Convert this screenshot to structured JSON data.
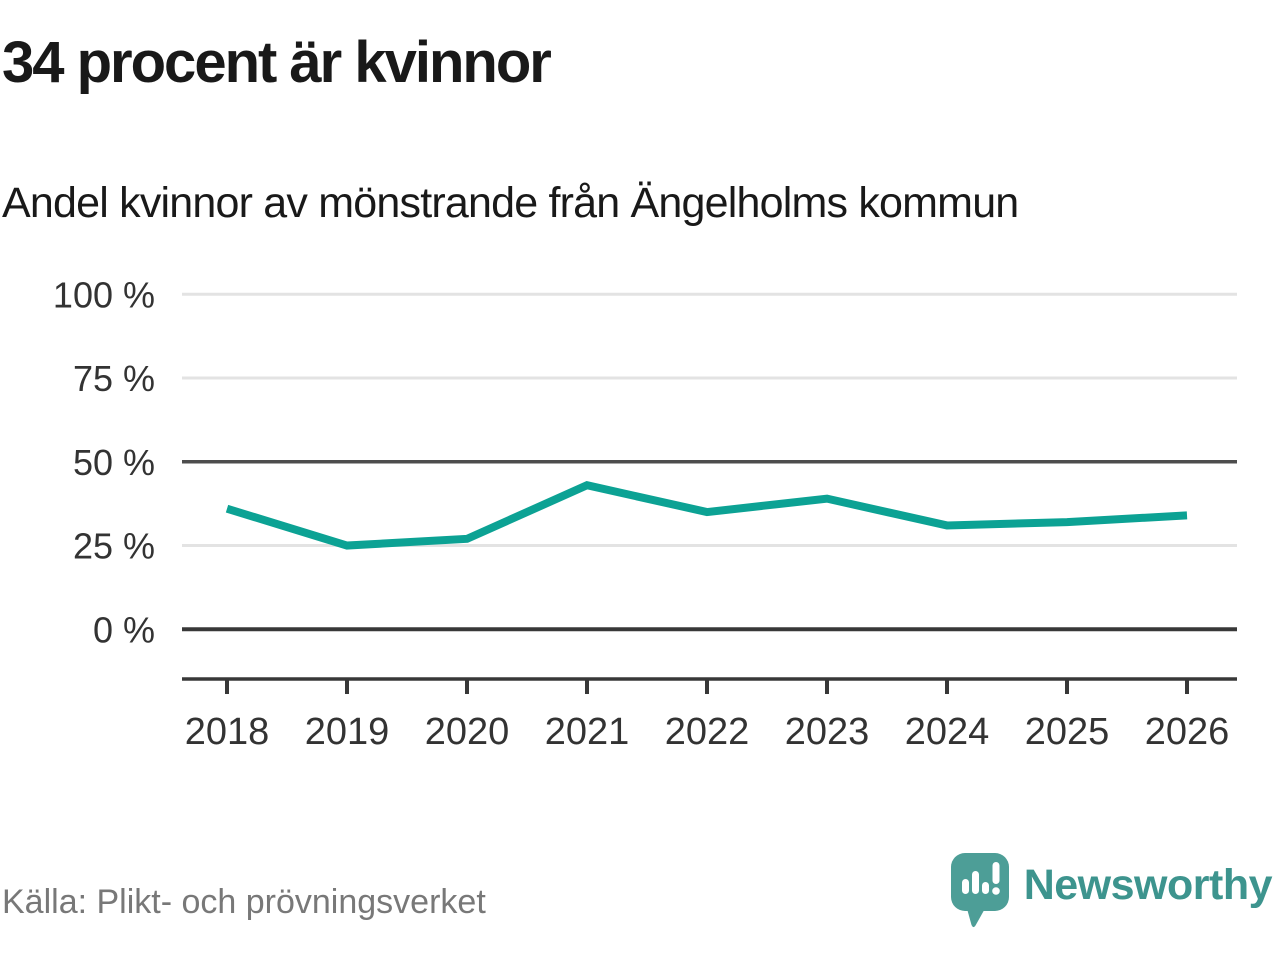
{
  "header": {
    "title": "34 procent är kvinnor",
    "subtitle": "Andel kvinnor av mönstrande från Ängelholms kommun"
  },
  "chart_data": {
    "type": "line",
    "title": "34 procent är kvinnor",
    "subtitle": "Andel kvinnor av mönstrande från Ängelholms kommun",
    "xlabel": "",
    "ylabel": "",
    "unit": "%",
    "x": [
      2018,
      2019,
      2020,
      2021,
      2022,
      2023,
      2024,
      2025,
      2026
    ],
    "xticks": [
      "2018",
      "2019",
      "2020",
      "2021",
      "2022",
      "2023",
      "2024",
      "2025",
      "2026"
    ],
    "series": [
      {
        "name": "Andel kvinnor av mönstrande",
        "color": "#0ca294",
        "values": [
          36,
          25,
          27,
          43,
          35,
          39,
          31,
          32,
          34
        ]
      }
    ],
    "ylim": [
      0,
      100
    ],
    "yticks": [
      {
        "value": 100,
        "label": "100 %",
        "style": "light"
      },
      {
        "value": 75,
        "label": "75 %",
        "style": "light"
      },
      {
        "value": 50,
        "label": "50 %",
        "style": "dark"
      },
      {
        "value": 25,
        "label": "25 %",
        "style": "light"
      },
      {
        "value": 0,
        "label": "0 %",
        "style": "baseline"
      }
    ],
    "grid": "horizontal",
    "legend": "none"
  },
  "footer": {
    "source": "Källa: Plikt- och prövningsverket",
    "brand": "Newsworthy"
  },
  "colors": {
    "accent_line": "#0ca294",
    "brand_teal": "#4d9e97",
    "brand_text": "#3d948e",
    "title_text": "#191919",
    "axis_text": "#333333",
    "source_text": "#787878",
    "grid_light": "#e3e3e3",
    "grid_dark": "#4d4d4d",
    "axis_dark": "#383838"
  }
}
